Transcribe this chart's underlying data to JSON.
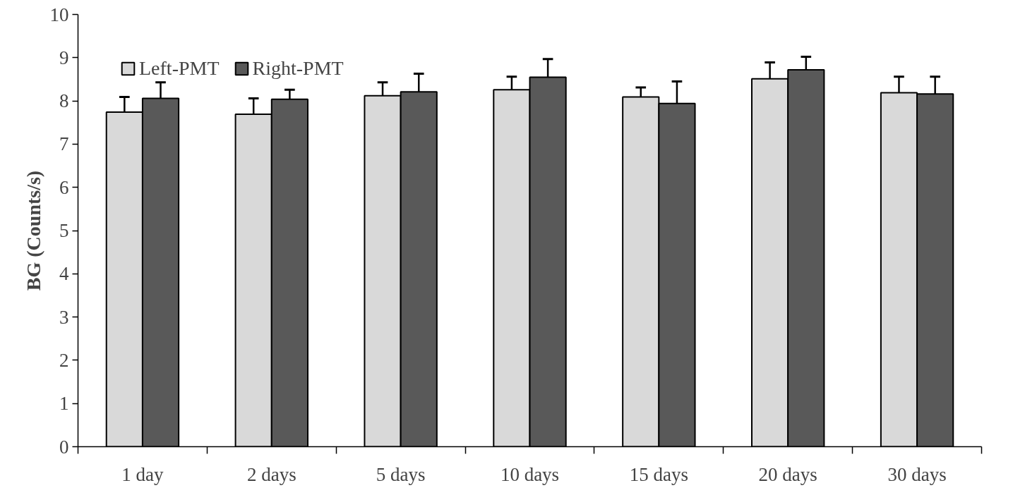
{
  "chart_data": {
    "type": "bar",
    "ylabel": "BG (Counts/s)",
    "categories": [
      "1 day",
      "2 days",
      "5 days",
      "10 days",
      "15 days",
      "20 days",
      "30 days"
    ],
    "series": [
      {
        "name": "Left-PMT",
        "color": "#d9d9d9",
        "values": [
          7.74,
          7.69,
          8.12,
          8.26,
          8.09,
          8.51,
          8.19
        ],
        "errors": [
          [
            7.74,
            8.09
          ],
          [
            7.69,
            8.06
          ],
          [
            8.12,
            8.43
          ],
          [
            8.26,
            8.56
          ],
          [
            8.09,
            8.31
          ],
          [
            8.51,
            8.89
          ],
          [
            8.19,
            8.56
          ]
        ]
      },
      {
        "name": "Right-PMT",
        "color": "#595959",
        "values": [
          8.06,
          8.04,
          8.21,
          8.55,
          7.94,
          8.72,
          8.16
        ],
        "errors": [
          [
            8.06,
            8.43
          ],
          [
            8.04,
            8.26
          ],
          [
            8.21,
            8.63
          ],
          [
            8.55,
            8.97
          ],
          [
            7.94,
            8.45
          ],
          [
            8.72,
            9.02
          ],
          [
            8.16,
            8.56
          ]
        ]
      }
    ],
    "ylim": [
      0,
      10
    ],
    "yticks": [
      0,
      1,
      2,
      3,
      4,
      5,
      6,
      7,
      8,
      9,
      10
    ],
    "grid": false,
    "legend": "top left"
  }
}
